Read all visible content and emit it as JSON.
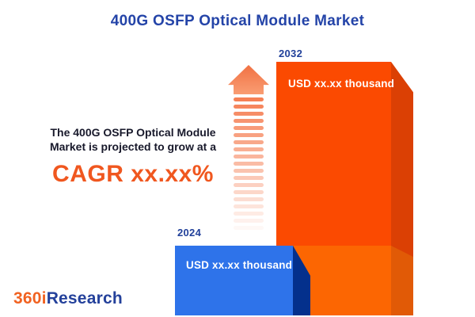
{
  "title": "400G OSFP Optical Module Market",
  "growth_note": {
    "line1": "The 400G OSFP Optical Module",
    "line2": "Market is projected to grow at a",
    "cagr": "CAGR xx.xx%"
  },
  "chart_data": {
    "type": "bar",
    "categories": [
      "2024",
      "2032"
    ],
    "series": [
      {
        "name": "400G OSFP Optical Module Market size",
        "values": [
          "USD xx.xx thousand",
          "USD xx.xx thousand"
        ]
      }
    ],
    "title": "400G OSFP Optical Module Market",
    "value_labels_masked": true,
    "annotations": [
      "The 400G OSFP Optical Module Market is projected to grow at a CAGR xx.xx%"
    ],
    "legend": "none",
    "axes": "none",
    "bar_style": "3d-extruded"
  },
  "bars": [
    {
      "year": "2024",
      "value_label": "USD xx.xx thousand",
      "face_color": "#2E73EA",
      "side_color": "#04308C"
    },
    {
      "year": "2032",
      "value_label": "USD xx.xx thousand",
      "face_color_top": "#FB4A01",
      "face_color_bottom": "#FC6602",
      "side_color_top": "#DB4004",
      "side_color_bottom": "#E15A06"
    }
  ],
  "logo": {
    "prefix": "360i",
    "suffix": "Research",
    "prefix_color": "#F16221",
    "suffix_color": "#24419B"
  },
  "colors": {
    "background": "#FFFFFF",
    "title_blue": "#2444A8",
    "year_label_blue": "#21409A",
    "body_text": "#18192B",
    "cagr_orange": "#F0571F",
    "arrow_orange": "#F5794C"
  }
}
